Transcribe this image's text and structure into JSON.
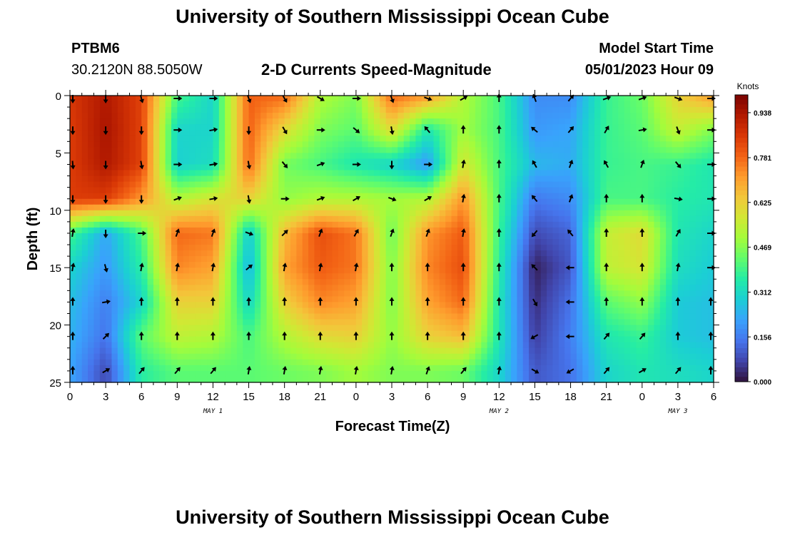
{
  "header": {
    "title": "University of Southern Mississippi Ocean Cube",
    "station_id": "PTBM6",
    "station_coords": "30.2120N  88.5050W",
    "plot_title": "2-D Currents Speed-Magnitude",
    "model_start_label": "Model Start Time",
    "model_start_value": "05/01/2023 Hour 09"
  },
  "footer": {
    "title": "University of Southern Mississippi Ocean Cube"
  },
  "chart_data": {
    "type": "heatmap",
    "title": "2-D Currents Speed-Magnitude",
    "xlabel": "Forecast Time(Z)",
    "ylabel": "Depth (ft)",
    "x_ticks": [
      "0",
      "3",
      "6",
      "9",
      "12",
      "15",
      "18",
      "21",
      "0",
      "3",
      "6",
      "9",
      "12",
      "15",
      "18",
      "21",
      "0",
      "3",
      "6"
    ],
    "x_range_hours": [
      0,
      54
    ],
    "date_labels": [
      {
        "label": "MAY 1",
        "hour": 12
      },
      {
        "label": "MAY 2",
        "hour": 36
      },
      {
        "label": "MAY 3",
        "hour": 51
      }
    ],
    "y_ticks": [
      0,
      5,
      10,
      15,
      20,
      25
    ],
    "y_range_ft": [
      0,
      25
    ],
    "y_inverted": true,
    "colorbar": {
      "title": "Knots",
      "ticks": [
        "0.938",
        "0.781",
        "0.625",
        "0.469",
        "0.312",
        "0.156",
        "0.000"
      ],
      "min": 0.0,
      "max": 1.0,
      "colormap": [
        "#30123b",
        "#4145ab",
        "#4675ed",
        "#39a2fc",
        "#1bcfd4",
        "#24eca6",
        "#61fc6c",
        "#a4fc3b",
        "#d1e834",
        "#f3c63a",
        "#fe9b2d",
        "#f36315",
        "#d93806",
        "#b11901",
        "#7a0402"
      ]
    },
    "depths_ft": [
      0,
      3,
      6,
      9,
      12,
      15,
      18,
      21,
      24
    ],
    "rows": [
      {
        "depth": 0,
        "values": [
          0.86,
          0.93,
          0.84,
          0.4,
          0.3,
          0.79,
          0.78,
          0.52,
          0.46,
          0.78,
          0.72,
          0.52,
          0.4,
          0.18,
          0.18,
          0.38,
          0.44,
          0.62,
          0.72
        ]
      },
      {
        "depth": 3,
        "values": [
          0.85,
          0.94,
          0.84,
          0.3,
          0.3,
          0.79,
          0.6,
          0.46,
          0.42,
          0.6,
          0.34,
          0.5,
          0.4,
          0.2,
          0.22,
          0.38,
          0.42,
          0.55,
          0.46
        ]
      },
      {
        "depth": 6,
        "values": [
          0.85,
          0.93,
          0.84,
          0.29,
          0.32,
          0.78,
          0.45,
          0.4,
          0.34,
          0.3,
          0.2,
          0.58,
          0.4,
          0.25,
          0.23,
          0.38,
          0.4,
          0.38,
          0.34
        ]
      },
      {
        "depth": 9,
        "values": [
          0.85,
          0.85,
          0.72,
          0.52,
          0.58,
          0.62,
          0.48,
          0.52,
          0.52,
          0.5,
          0.52,
          0.72,
          0.4,
          0.15,
          0.18,
          0.4,
          0.4,
          0.36,
          0.34
        ]
      },
      {
        "depth": 12,
        "values": [
          0.4,
          0.22,
          0.4,
          0.78,
          0.76,
          0.28,
          0.66,
          0.82,
          0.76,
          0.44,
          0.72,
          0.8,
          0.38,
          0.08,
          0.12,
          0.55,
          0.6,
          0.34,
          0.3
        ]
      },
      {
        "depth": 15,
        "values": [
          0.3,
          0.2,
          0.36,
          0.74,
          0.7,
          0.24,
          0.7,
          0.8,
          0.76,
          0.46,
          0.74,
          0.82,
          0.36,
          0.02,
          0.1,
          0.54,
          0.58,
          0.32,
          0.28
        ]
      },
      {
        "depth": 18,
        "values": [
          0.26,
          0.16,
          0.3,
          0.62,
          0.62,
          0.3,
          0.62,
          0.74,
          0.7,
          0.46,
          0.7,
          0.78,
          0.34,
          0.04,
          0.14,
          0.42,
          0.48,
          0.28,
          0.26
        ]
      },
      {
        "depth": 21,
        "values": [
          0.24,
          0.14,
          0.42,
          0.54,
          0.52,
          0.4,
          0.52,
          0.6,
          0.62,
          0.48,
          0.62,
          0.66,
          0.34,
          0.06,
          0.16,
          0.34,
          0.38,
          0.28,
          0.26
        ]
      },
      {
        "depth": 24,
        "values": [
          0.22,
          0.08,
          0.36,
          0.42,
          0.42,
          0.42,
          0.44,
          0.46,
          0.5,
          0.46,
          0.46,
          0.44,
          0.3,
          0.1,
          0.14,
          0.3,
          0.34,
          0.32,
          0.3
        ]
      }
    ],
    "arrows": {
      "hours": [
        0,
        3,
        6,
        9,
        12,
        15,
        18,
        21,
        24,
        27,
        30,
        33,
        36,
        39,
        42,
        45,
        48,
        51,
        54
      ],
      "rows": [
        {
          "depth": 0,
          "dir_deg": [
            180,
            180,
            165,
            90,
            90,
            160,
            150,
            120,
            90,
            160,
            110,
            60,
            0,
            340,
            40,
            70,
            70,
            110,
            90
          ]
        },
        {
          "depth": 3,
          "dir_deg": [
            180,
            180,
            180,
            90,
            80,
            180,
            150,
            90,
            130,
            170,
            320,
            0,
            0,
            310,
            40,
            30,
            80,
            160,
            90
          ]
        },
        {
          "depth": 6,
          "dir_deg": [
            175,
            180,
            170,
            90,
            80,
            170,
            140,
            70,
            90,
            180,
            90,
            10,
            0,
            330,
            20,
            330,
            20,
            140,
            90
          ]
        },
        {
          "depth": 9,
          "dir_deg": [
            180,
            180,
            180,
            70,
            80,
            170,
            90,
            70,
            60,
            110,
            60,
            10,
            0,
            320,
            20,
            0,
            0,
            100,
            90
          ]
        },
        {
          "depth": 12,
          "dir_deg": [
            10,
            180,
            90,
            20,
            20,
            110,
            45,
            20,
            30,
            20,
            20,
            10,
            0,
            220,
            320,
            0,
            0,
            30,
            90
          ]
        },
        {
          "depth": 15,
          "dir_deg": [
            10,
            165,
            10,
            10,
            10,
            50,
            10,
            10,
            10,
            0,
            0,
            0,
            0,
            315,
            270,
            0,
            0,
            10,
            90
          ]
        },
        {
          "depth": 18,
          "dir_deg": [
            0,
            80,
            0,
            0,
            0,
            0,
            0,
            0,
            0,
            0,
            0,
            0,
            0,
            150,
            270,
            0,
            0,
            0,
            0
          ]
        },
        {
          "depth": 21,
          "dir_deg": [
            0,
            45,
            0,
            0,
            0,
            0,
            0,
            0,
            0,
            0,
            0,
            0,
            0,
            240,
            270,
            40,
            40,
            0,
            0
          ]
        },
        {
          "depth": 24,
          "dir_deg": [
            0,
            60,
            40,
            40,
            40,
            10,
            10,
            10,
            10,
            10,
            20,
            40,
            10,
            120,
            240,
            40,
            60,
            40,
            0
          ]
        }
      ]
    }
  }
}
